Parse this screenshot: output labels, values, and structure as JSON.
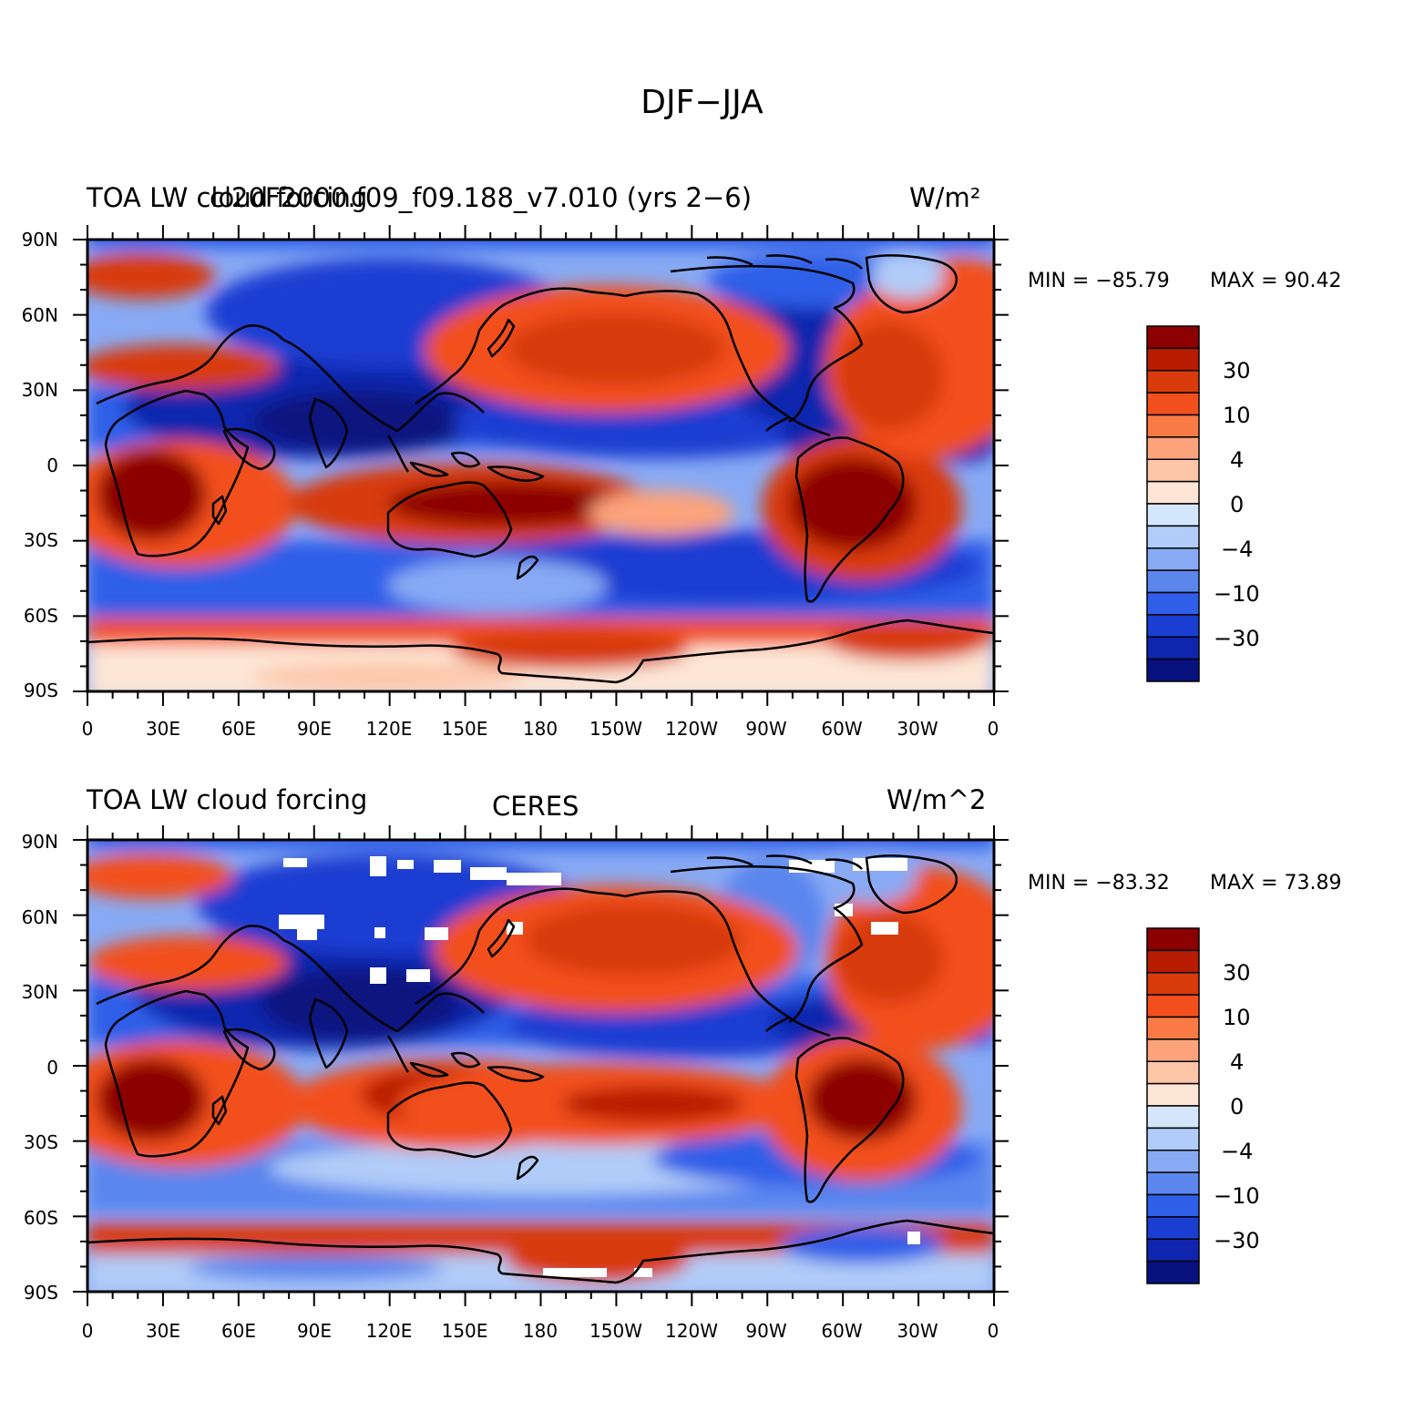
{
  "title": "DJF−JJA",
  "panels": [
    {
      "id": "model",
      "title_left": "TOA LW cloud forcing",
      "title_center": "cl20F2000.f09_f09.188_v7.010 (yrs 2−6)",
      "units": "W/m²",
      "min_label": "MIN = −85.79",
      "max_label": "MAX =   90.42"
    },
    {
      "id": "obs",
      "title_left": "TOA LW cloud forcing",
      "title_center": "CERES",
      "units": "W/m^2",
      "min_label": "MIN = −83.32",
      "max_label": "MAX =   73.89"
    }
  ],
  "lat_labels": [
    "90N",
    "60N",
    "30N",
    "0",
    "30S",
    "60S",
    "90S"
  ],
  "lon_labels": [
    "0",
    "30E",
    "60E",
    "90E",
    "120E",
    "150E",
    "180",
    "150W",
    "120W",
    "90W",
    "60W",
    "30W",
    "0"
  ],
  "colorbar": {
    "colors": [
      "#8c0000",
      "#b71c00",
      "#d83a0c",
      "#f24f1d",
      "#fa7a45",
      "#fca37c",
      "#fcc6a7",
      "#fde6d6",
      "#d4e6fb",
      "#b1ccf8",
      "#88aaf4",
      "#5a86ee",
      "#2f5fe8",
      "#1a3ed2",
      "#0f25ad",
      "#08127f"
    ],
    "labels": [
      "30",
      "10",
      "4",
      "0",
      "−4",
      "−10",
      "−30"
    ]
  }
}
